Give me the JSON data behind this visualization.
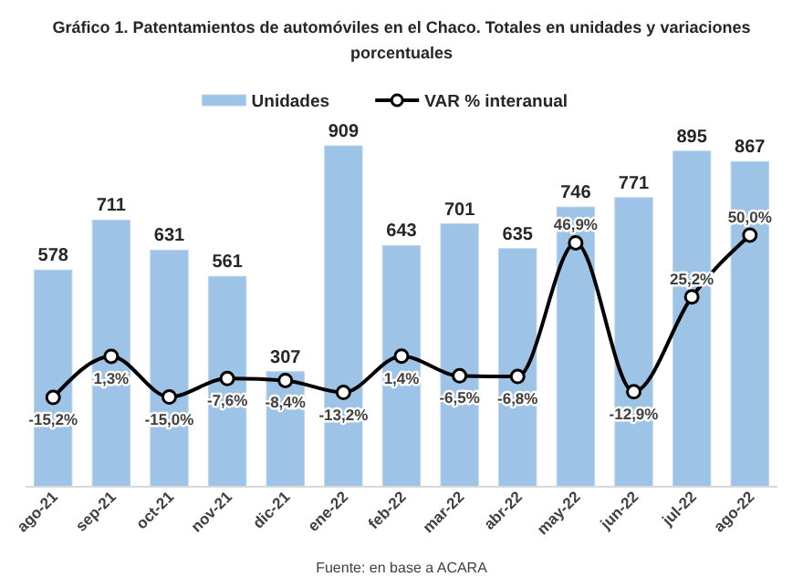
{
  "chart_data": {
    "type": "bar",
    "title": "Gráfico 1. Patentamientos de automóviles en el Chaco. Totales en unidades y variaciones porcentuales",
    "categories": [
      "ago-21",
      "sep-21",
      "oct-21",
      "nov-21",
      "dic-21",
      "ene-22",
      "feb-22",
      "mar-22",
      "abr-22",
      "may-22",
      "jun-22",
      "jul-22",
      "ago-22"
    ],
    "series": [
      {
        "name": "Unidades",
        "color": "#9dc3e6",
        "values": [
          578,
          711,
          631,
          561,
          307,
          909,
          643,
          701,
          635,
          746,
          771,
          895,
          867
        ],
        "value_labels": [
          "578",
          "711",
          "631",
          "561",
          "307",
          "909",
          "643",
          "701",
          "635",
          "746",
          "771",
          "895",
          "867"
        ]
      },
      {
        "name": "VAR % interanual",
        "type": "line",
        "axis": "y2",
        "color": "#000000",
        "values": [
          -15.2,
          1.3,
          -15.0,
          -7.6,
          -8.4,
          -13.2,
          1.4,
          -6.5,
          -6.8,
          46.9,
          -12.9,
          25.2,
          50.0
        ],
        "value_labels": [
          "-15,2%",
          "1,3%",
          "-15,0%",
          "-7,6%",
          "-8,4%",
          "-13,2%",
          "1,4%",
          "-6,5%",
          "-6,8%",
          "46,9%",
          "-12,9%",
          "25,2%",
          "50,0%"
        ]
      }
    ],
    "tick_labels": "x",
    "legend": "top",
    "marker": "circle",
    "line_style": "solid",
    "annotations": [
      "Fuente: en base a ACARA"
    ]
  }
}
